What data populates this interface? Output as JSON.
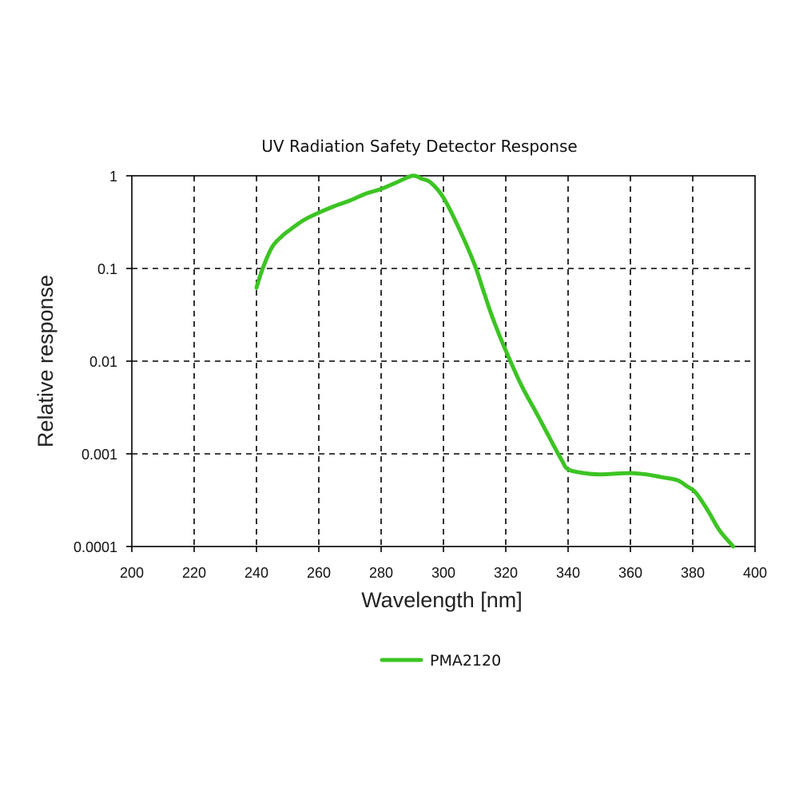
{
  "chart_data": {
    "type": "line",
    "title": "UV Radiation Safety Detector Response",
    "xlabel": "Wavelength [nm]",
    "ylabel": "Relative response",
    "xlim": [
      200,
      400
    ],
    "ylim": [
      0.0001,
      1
    ],
    "yscale": "log",
    "grid": true,
    "legend_position": "bottom-center",
    "x_ticks": [
      200,
      220,
      240,
      260,
      280,
      300,
      320,
      340,
      360,
      380,
      400
    ],
    "x_tick_labels": [
      "200",
      "220",
      "240",
      "260",
      "280",
      "300",
      "320",
      "340",
      "360",
      "380",
      "400"
    ],
    "y_ticks": [
      0.0001,
      0.001,
      0.01,
      0.1,
      1
    ],
    "y_tick_labels": [
      "0.0001",
      "0.001",
      "0.01",
      "0.1",
      "1"
    ],
    "series": [
      {
        "name": "PMA2120",
        "color": "#3cc423",
        "x": [
          240,
          242,
          245,
          248,
          250,
          255,
          260,
          265,
          270,
          275,
          280,
          285,
          290,
          293,
          296,
          300,
          305,
          310,
          313,
          316,
          320,
          325,
          330,
          335,
          338,
          340,
          345,
          350,
          355,
          360,
          365,
          370,
          375,
          378,
          381,
          385,
          388,
          390,
          393
        ],
        "y": [
          0.062,
          0.1,
          0.17,
          0.22,
          0.25,
          0.33,
          0.4,
          0.47,
          0.54,
          0.64,
          0.72,
          0.85,
          1.0,
          0.93,
          0.84,
          0.58,
          0.27,
          0.11,
          0.055,
          0.028,
          0.013,
          0.0055,
          0.0027,
          0.0013,
          0.00085,
          0.00068,
          0.00062,
          0.0006,
          0.00061,
          0.00062,
          0.0006,
          0.00056,
          0.00052,
          0.00045,
          0.00038,
          0.00024,
          0.00016,
          0.00013,
          0.0001
        ]
      }
    ]
  }
}
